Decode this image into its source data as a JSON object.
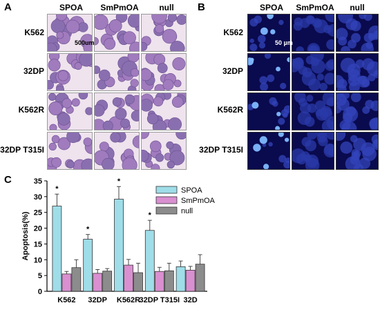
{
  "panel_a": {
    "letter": "A",
    "columns": [
      "SPOA",
      "SmPmOA",
      "null"
    ],
    "rows": [
      "K562",
      "32DP",
      "K562R",
      "32DP T315I"
    ],
    "scale_bar": "500um"
  },
  "panel_b": {
    "letter": "B",
    "columns": [
      "SPOA",
      "SmPmOA",
      "null"
    ],
    "rows": [
      "K562",
      "32DP",
      "K562R",
      "32DP T315I"
    ],
    "scale_bar": "50 µm"
  },
  "panel_c": {
    "letter": "C"
  },
  "colors": {
    "SPOA": "#9fdde8",
    "SmPmOA": "#d98fd0",
    "null": "#8c8c8c",
    "fluor_bg": "#0a0a4e",
    "he_bg": "#efe3ee"
  },
  "chart_data": {
    "type": "bar",
    "categories": [
      "K562",
      "32DP",
      "K562R",
      "32DP T315I",
      "32D"
    ],
    "series": [
      {
        "name": "SPOA",
        "values": [
          27.0,
          16.5,
          29.2,
          19.3,
          7.8
        ],
        "errors": [
          3.8,
          1.5,
          4.0,
          3.2,
          1.8
        ]
      },
      {
        "name": "SmPmOA",
        "values": [
          5.5,
          5.7,
          8.3,
          6.3,
          6.7
        ],
        "errors": [
          0.8,
          1.2,
          1.8,
          1.3,
          1.2
        ]
      },
      {
        "name": "null",
        "values": [
          7.5,
          6.4,
          5.9,
          6.5,
          8.6
        ],
        "errors": [
          2.5,
          0.8,
          3.0,
          2.4,
          3.0
        ]
      }
    ],
    "significance": [
      "*",
      "*",
      "*",
      "*",
      ""
    ],
    "ylabel": "Apoptosis(%)",
    "xlabel": "",
    "ylim": [
      0,
      35
    ],
    "yticks": [
      0,
      5,
      10,
      15,
      20,
      25,
      30,
      35
    ],
    "legend_position": "top-right",
    "grid": false
  }
}
